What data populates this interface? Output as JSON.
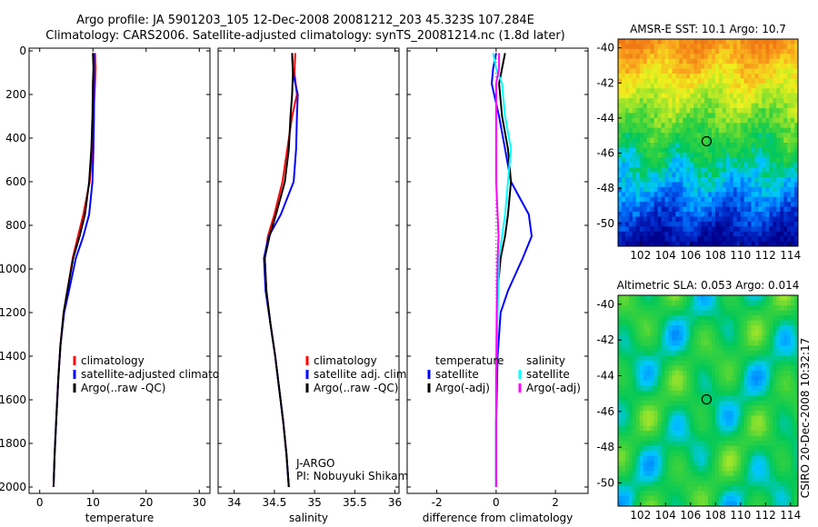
{
  "header": {
    "line1": "Argo profile: JA 5901203_105 12-Dec-2008 20081212_203 45.323S 107.284E",
    "line2": "Climatology: CARS2006. Satellite-adjusted climatology: synTS_20081214.nc (1.8d later)"
  },
  "colors": {
    "red": "#ff0000",
    "blue": "#0000ff",
    "black": "#000000",
    "cyan": "#00ffff",
    "magenta": "#ff00ff"
  },
  "chart_data": [
    {
      "type": "line",
      "xlabel": "temperature",
      "x_ticks": [
        0,
        10,
        20,
        30
      ],
      "xlim": [
        -2,
        32
      ],
      "y_ticks": [
        0,
        200,
        400,
        600,
        800,
        1000,
        1200,
        1400,
        1600,
        1800,
        2000
      ],
      "ylim": [
        2050,
        0
      ],
      "legend": [
        "climatology",
        "satellite-adjusted climatology",
        "Argo(..raw -QC)"
      ],
      "series": [
        {
          "name": "climatology",
          "color": "red",
          "points": [
            [
              10.4,
              10
            ],
            [
              10.5,
              80
            ],
            [
              10.4,
              150
            ],
            [
              10.1,
              300
            ],
            [
              9.9,
              450
            ],
            [
              9.4,
              600
            ],
            [
              8.2,
              750
            ],
            [
              7.2,
              850
            ],
            [
              6.2,
              950
            ],
            [
              5.2,
              1100
            ],
            [
              4.5,
              1200
            ],
            [
              3.9,
              1350
            ],
            [
              3.5,
              1500
            ],
            [
              3.1,
              1700
            ],
            [
              2.8,
              1850
            ],
            [
              2.6,
              2000
            ]
          ]
        },
        {
          "name": "satellite-adjusted climatology",
          "color": "blue",
          "points": [
            [
              10.2,
              10
            ],
            [
              10.2,
              80
            ],
            [
              10.2,
              150
            ],
            [
              10.2,
              300
            ],
            [
              10.1,
              450
            ],
            [
              9.9,
              600
            ],
            [
              9.3,
              750
            ],
            [
              8.2,
              850
            ],
            [
              6.8,
              950
            ],
            [
              5.5,
              1100
            ],
            [
              4.6,
              1200
            ],
            [
              3.9,
              1350
            ],
            [
              3.5,
              1500
            ],
            [
              3.1,
              1700
            ],
            [
              2.8,
              1850
            ],
            [
              2.6,
              2000
            ]
          ]
        },
        {
          "name": "Argo(..raw -QC)",
          "color": "black",
          "points": [
            [
              10.0,
              10
            ],
            [
              10.1,
              80
            ],
            [
              10.0,
              150
            ],
            [
              9.9,
              300
            ],
            [
              9.7,
              450
            ],
            [
              9.3,
              600
            ],
            [
              8.5,
              750
            ],
            [
              7.5,
              850
            ],
            [
              6.3,
              950
            ],
            [
              5.2,
              1100
            ],
            [
              4.5,
              1200
            ],
            [
              3.9,
              1350
            ],
            [
              3.5,
              1500
            ],
            [
              3.1,
              1700
            ],
            [
              2.8,
              1850
            ],
            [
              2.6,
              2000
            ]
          ]
        }
      ]
    },
    {
      "type": "line",
      "xlabel": "salinity",
      "x_ticks": [
        34,
        34.5,
        35,
        35.5,
        36
      ],
      "xlim": [
        33.8,
        36.05
      ],
      "y_ticks": [
        0,
        200,
        400,
        600,
        800,
        1000,
        1200,
        1400,
        1600,
        1800,
        2000
      ],
      "ylim": [
        2050,
        0
      ],
      "legend": [
        "climatology",
        "satellite adj. clim.",
        "Argo(..raw -QC)"
      ],
      "annotation": [
        "J-ARGO",
        "PI: Nobuyuki Shikama"
      ],
      "series": [
        {
          "name": "climatology",
          "color": "red",
          "points": [
            [
              34.76,
              10
            ],
            [
              34.75,
              100
            ],
            [
              34.78,
              200
            ],
            [
              34.72,
              300
            ],
            [
              34.66,
              450
            ],
            [
              34.6,
              600
            ],
            [
              34.5,
              750
            ],
            [
              34.42,
              850
            ],
            [
              34.38,
              950
            ],
            [
              34.4,
              1100
            ],
            [
              34.45,
              1250
            ],
            [
              34.51,
              1400
            ],
            [
              34.56,
              1550
            ],
            [
              34.61,
              1700
            ],
            [
              34.65,
              1850
            ],
            [
              34.68,
              2000
            ]
          ]
        },
        {
          "name": "satellite adj. clim.",
          "color": "blue",
          "points": [
            [
              34.72,
              10
            ],
            [
              34.73,
              100
            ],
            [
              34.79,
              200
            ],
            [
              34.78,
              300
            ],
            [
              34.77,
              450
            ],
            [
              34.74,
              600
            ],
            [
              34.58,
              750
            ],
            [
              34.43,
              850
            ],
            [
              34.37,
              950
            ],
            [
              34.39,
              1100
            ],
            [
              34.45,
              1250
            ],
            [
              34.51,
              1400
            ],
            [
              34.56,
              1550
            ],
            [
              34.61,
              1700
            ],
            [
              34.65,
              1850
            ],
            [
              34.68,
              2000
            ]
          ]
        },
        {
          "name": "Argo(..raw -QC)",
          "color": "black",
          "points": [
            [
              34.72,
              10
            ],
            [
              34.73,
              100
            ],
            [
              34.72,
              200
            ],
            [
              34.7,
              300
            ],
            [
              34.68,
              450
            ],
            [
              34.63,
              600
            ],
            [
              34.52,
              750
            ],
            [
              34.44,
              850
            ],
            [
              34.38,
              950
            ],
            [
              34.4,
              1100
            ],
            [
              34.45,
              1250
            ],
            [
              34.51,
              1400
            ],
            [
              34.56,
              1550
            ],
            [
              34.61,
              1700
            ],
            [
              34.65,
              1850
            ],
            [
              34.68,
              2000
            ]
          ]
        }
      ]
    },
    {
      "type": "line",
      "xlabel": "difference from climatology",
      "x_ticks": [
        -2,
        0,
        2
      ],
      "xlim": [
        -3,
        3.1
      ],
      "y_ticks": [
        0,
        200,
        400,
        600,
        800,
        1000,
        1200,
        1400,
        1600,
        1800,
        2000
      ],
      "ylim": [
        2050,
        0
      ],
      "legend_left_title": "temperature",
      "legend_left": [
        "satellite",
        "Argo(-adj)"
      ],
      "legend_right_title": "salinity",
      "legend_right": [
        "satellite",
        "Argo(-adj)"
      ],
      "series": [
        {
          "name": "temperature satellite",
          "color": "blue",
          "points": [
            [
              0.0,
              10
            ],
            [
              -0.1,
              80
            ],
            [
              -0.15,
              150
            ],
            [
              0.1,
              300
            ],
            [
              0.3,
              450
            ],
            [
              0.5,
              600
            ],
            [
              1.1,
              750
            ],
            [
              1.2,
              850
            ],
            [
              0.9,
              950
            ],
            [
              0.4,
              1100
            ],
            [
              0.15,
              1200
            ],
            [
              0.05,
              1400
            ],
            [
              0,
              1700
            ],
            [
              0,
              2000
            ]
          ]
        },
        {
          "name": "temperature Argo(-adj)",
          "color": "black",
          "points": [
            [
              0.3,
              10
            ],
            [
              0.2,
              80
            ],
            [
              0.1,
              150
            ],
            [
              0.2,
              300
            ],
            [
              0.4,
              450
            ],
            [
              0.5,
              600
            ],
            [
              0.4,
              750
            ],
            [
              0.3,
              850
            ],
            [
              0.15,
              950
            ],
            [
              0.05,
              1100
            ],
            [
              0.02,
              1400
            ],
            [
              0,
              1700
            ],
            [
              0,
              2000
            ]
          ]
        },
        {
          "name": "salinity satellite",
          "color": "cyan",
          "points": [
            [
              -0.1,
              10
            ],
            [
              0,
              80
            ],
            [
              0.2,
              150
            ],
            [
              0.3,
              300
            ],
            [
              0.5,
              450
            ],
            [
              0.4,
              600
            ],
            [
              0.3,
              750
            ],
            [
              0.2,
              850
            ],
            [
              0.1,
              950
            ],
            [
              0.05,
              1200
            ],
            [
              0,
              1500
            ],
            [
              0,
              2000
            ]
          ]
        },
        {
          "name": "salinity Argo(-adj)",
          "color": "magenta",
          "points": [
            [
              0.1,
              10
            ],
            [
              0.1,
              80
            ],
            [
              0,
              150
            ],
            [
              0,
              300
            ],
            [
              0,
              450
            ],
            [
              0.0,
              600
            ],
            [
              0.05,
              750
            ],
            [
              0.08,
              850
            ],
            [
              0.05,
              950
            ],
            [
              0.02,
              1200
            ],
            [
              0,
              1500
            ],
            [
              0,
              2000
            ]
          ]
        }
      ]
    },
    {
      "type": "heatmap",
      "title": "AMSR-E SST: 10.1 Argo: 10.7",
      "x_ticks": [
        102,
        104,
        106,
        108,
        110,
        112,
        114
      ],
      "y_ticks": [
        -40,
        -42,
        -44,
        -46,
        -48,
        -50
      ],
      "xlim": [
        100.2,
        114.6
      ],
      "ylim": [
        -51.3,
        -39.5
      ],
      "marker": [
        107.284,
        -45.323
      ]
    },
    {
      "type": "heatmap",
      "title": "Altimetric SLA: 0.053 Argo: 0.014",
      "x_ticks": [
        102,
        104,
        106,
        108,
        110,
        112,
        114
      ],
      "y_ticks": [
        -40,
        -42,
        -44,
        -46,
        -48,
        -50
      ],
      "xlim": [
        100.2,
        114.6
      ],
      "ylim": [
        -51.3,
        -39.5
      ],
      "marker": [
        107.284,
        -45.323
      ]
    }
  ],
  "side_caption": "CSIRO 20-Dec-2008 10:32:17"
}
